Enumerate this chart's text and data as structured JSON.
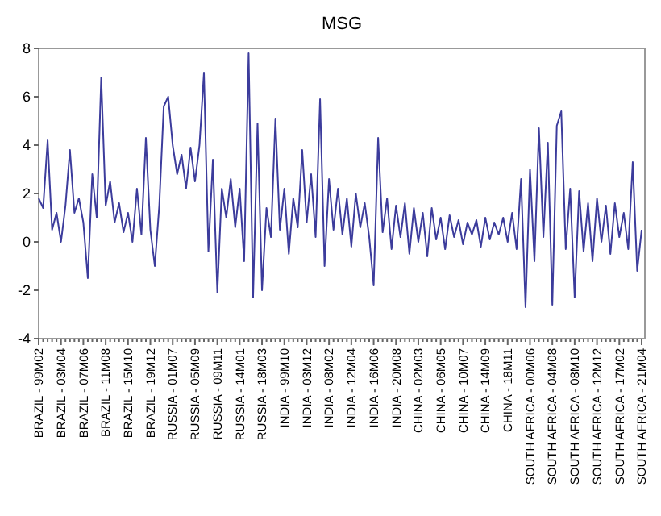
{
  "chart_data": {
    "type": "line",
    "title": "MSG",
    "categories": [
      "BRAZIL - 99M02",
      null,
      null,
      null,
      null,
      "BRAZIL - 03M04",
      null,
      null,
      null,
      null,
      "BRAZIL - 07M06",
      null,
      null,
      null,
      null,
      "BRAZIL - 11M08",
      null,
      null,
      null,
      null,
      "BRAZIL - 15M10",
      null,
      null,
      null,
      null,
      "BRAZIL - 19M12",
      null,
      null,
      null,
      null,
      "RUSSIA - 01M07",
      null,
      null,
      null,
      null,
      "RUSSIA - 05M09",
      null,
      null,
      null,
      null,
      "RUSSIA - 09M11",
      null,
      null,
      null,
      null,
      "RUSSIA - 14M01",
      null,
      null,
      null,
      null,
      "RUSSIA - 18M03",
      null,
      null,
      null,
      null,
      "INDIA - 99M10",
      null,
      null,
      null,
      null,
      "INDIA - 03M12",
      null,
      null,
      null,
      null,
      "INDIA - 08M02",
      null,
      null,
      null,
      null,
      "INDIA - 12M04",
      null,
      null,
      null,
      null,
      "INDIA - 16M06",
      null,
      null,
      null,
      null,
      "INDIA - 20M08",
      null,
      null,
      null,
      null,
      "CHINA - 02M03",
      null,
      null,
      null,
      null,
      "CHINA - 06M05",
      null,
      null,
      null,
      null,
      "CHINA - 10M07",
      null,
      null,
      null,
      null,
      "CHINA - 14M09",
      null,
      null,
      null,
      null,
      "CHINA - 18M11",
      null,
      null,
      null,
      null,
      "SOUTH AFRICA - 00M06",
      null,
      null,
      null,
      null,
      "SOUTH AFRICA - 04M08",
      null,
      null,
      null,
      null,
      "SOUTH AFRICA - 08M10",
      null,
      null,
      null,
      null,
      "SOUTH AFRICA - 12M12",
      null,
      null,
      null,
      null,
      "SOUTH AFRICA - 17M02",
      null,
      null,
      null,
      null,
      "SOUTH AFRICA - 21M04"
    ],
    "series": [
      {
        "color": "#3c3c9c",
        "values": [
          1.8,
          1.4,
          4.2,
          0.5,
          1.2,
          0.0,
          1.5,
          3.8,
          1.2,
          1.8,
          0.8,
          -1.5,
          2.8,
          1.0,
          6.8,
          1.5,
          2.5,
          0.8,
          1.6,
          0.4,
          1.2,
          0.0,
          2.2,
          0.3,
          4.3,
          0.5,
          -1.0,
          1.5,
          5.6,
          6.0,
          4.0,
          2.8,
          3.6,
          2.2,
          3.9,
          2.5,
          4.0,
          7.0,
          -0.4,
          3.4,
          -2.1,
          2.2,
          1.0,
          2.6,
          0.6,
          2.2,
          -0.8,
          7.8,
          -2.3,
          4.9,
          -2.0,
          1.4,
          0.2,
          5.1,
          0.5,
          2.2,
          -0.5,
          1.8,
          0.6,
          3.8,
          0.8,
          2.8,
          0.2,
          5.9,
          -1.0,
          2.6,
          0.5,
          2.2,
          0.3,
          1.8,
          -0.2,
          2.0,
          0.6,
          1.6,
          0.2,
          -1.8,
          4.3,
          0.4,
          1.8,
          -0.3,
          1.5,
          0.2,
          1.6,
          -0.5,
          1.4,
          0.0,
          1.2,
          -0.6,
          1.4,
          0.1,
          1.0,
          -0.3,
          1.1,
          0.2,
          0.9,
          -0.1,
          0.8,
          0.3,
          0.9,
          -0.2,
          1.0,
          0.1,
          0.8,
          0.3,
          1.0,
          0.0,
          1.2,
          -0.3,
          2.6,
          -2.7,
          3.0,
          -0.8,
          4.7,
          0.2,
          4.1,
          -2.6,
          4.8,
          5.4,
          -0.3,
          2.2,
          -2.3,
          2.1,
          -0.4,
          1.6,
          -0.8,
          1.8,
          0.0,
          1.5,
          -0.5,
          1.6,
          0.2,
          1.2,
          -0.3,
          3.3,
          -1.2,
          0.5
        ]
      }
    ],
    "ylim": [
      -4,
      8
    ],
    "yticks": [
      -4,
      -2,
      0,
      2,
      4,
      6,
      8
    ],
    "grid": false,
    "marker": "none",
    "line_style": "solid"
  }
}
